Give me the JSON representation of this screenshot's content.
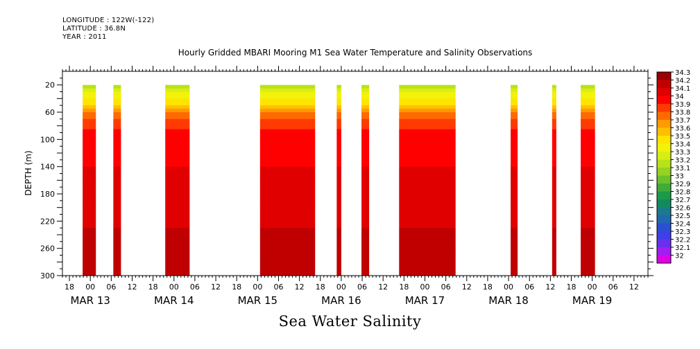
{
  "header": {
    "longitude": "LONGITUDE : 122W(-122)",
    "latitude": "LATITUDE : 36.8N",
    "year": "YEAR : 2011"
  },
  "chart_data": {
    "type": "heatmap",
    "title": "Hourly Gridded MBARI Mooring M1 Sea Water Temperature and Salinity Observations",
    "variable_label": "Sea Water Salinity",
    "ylabel": "DEPTH (m)",
    "ylim": [
      300,
      0
    ],
    "y_ticks": [
      20,
      60,
      100,
      140,
      180,
      220,
      260,
      300
    ],
    "x_range_hours": [
      -8,
      160
    ],
    "x_hour_labels": [
      {
        "h": -6,
        "label": "18"
      },
      {
        "h": 0,
        "label": "00"
      },
      {
        "h": 6,
        "label": "06"
      },
      {
        "h": 12,
        "label": "12"
      },
      {
        "h": 18,
        "label": "18"
      },
      {
        "h": 24,
        "label": "00"
      },
      {
        "h": 30,
        "label": "06"
      },
      {
        "h": 36,
        "label": "12"
      },
      {
        "h": 42,
        "label": "18"
      },
      {
        "h": 48,
        "label": "00"
      },
      {
        "h": 54,
        "label": "06"
      },
      {
        "h": 60,
        "label": "12"
      },
      {
        "h": 66,
        "label": "18"
      },
      {
        "h": 72,
        "label": "00"
      },
      {
        "h": 78,
        "label": "06"
      },
      {
        "h": 84,
        "label": "12"
      },
      {
        "h": 90,
        "label": "18"
      },
      {
        "h": 96,
        "label": "00"
      },
      {
        "h": 102,
        "label": "06"
      },
      {
        "h": 108,
        "label": "12"
      },
      {
        "h": 114,
        "label": "18"
      },
      {
        "h": 120,
        "label": "00"
      },
      {
        "h": 126,
        "label": "06"
      },
      {
        "h": 132,
        "label": "12"
      },
      {
        "h": 138,
        "label": "18"
      },
      {
        "h": 144,
        "label": "00"
      },
      {
        "h": 150,
        "label": "06"
      },
      {
        "h": 156,
        "label": "12"
      }
    ],
    "date_labels": [
      {
        "h": 0,
        "label": "MAR 13"
      },
      {
        "h": 24,
        "label": "MAR 14"
      },
      {
        "h": 48,
        "label": "MAR 15"
      },
      {
        "h": 72,
        "label": "MAR 16"
      },
      {
        "h": 96,
        "label": "MAR 17"
      },
      {
        "h": 120,
        "label": "MAR 18"
      },
      {
        "h": 144,
        "label": "MAR 19"
      }
    ],
    "data_segments_hours": [
      [
        -2.2,
        1.6
      ],
      [
        6.6,
        8.8
      ],
      [
        21.5,
        28.5
      ],
      [
        48.7,
        64.5
      ],
      [
        70.7,
        72.0
      ],
      [
        77.8,
        80.0
      ],
      [
        88.6,
        104.8
      ],
      [
        120.6,
        122.6
      ],
      [
        132.5,
        133.7
      ],
      [
        140.7,
        144.8
      ]
    ],
    "salinity_profile": [
      {
        "depth": 20,
        "value": 33.2
      },
      {
        "depth": 30,
        "value": 33.4
      },
      {
        "depth": 40,
        "value": 33.5
      },
      {
        "depth": 50,
        "value": 33.6
      },
      {
        "depth": 60,
        "value": 33.8
      },
      {
        "depth": 70,
        "value": 33.9
      },
      {
        "depth": 85,
        "value": 34.0
      },
      {
        "depth": 110,
        "value": 34.05
      },
      {
        "depth": 150,
        "value": 34.12
      },
      {
        "depth": 230,
        "value": 34.2
      },
      {
        "depth": 280,
        "value": 34.25
      },
      {
        "depth": 300,
        "value": 34.2
      }
    ],
    "colorbar": {
      "levels": [
        "34.3",
        "34.2",
        "34.1",
        "34",
        "33.9",
        "33.8",
        "33.7",
        "33.6",
        "33.5",
        "33.4",
        "33.3",
        "33.2",
        "33.1",
        "33",
        "32.9",
        "32.8",
        "32.7",
        "32.6",
        "32.5",
        "32.4",
        "32.3",
        "32.2",
        "32.1",
        "32"
      ],
      "colors": [
        "#9b0000",
        "#c00000",
        "#e00000",
        "#ff0000",
        "#ff3a00",
        "#ff6a00",
        "#ff9a00",
        "#ffbf00",
        "#ffe400",
        "#f2f20a",
        "#d7ee12",
        "#b8e21a",
        "#96d222",
        "#6cc02c",
        "#3fab38",
        "#1c9a48",
        "#128a5e",
        "#1c7a8c",
        "#2266b4",
        "#2a50d0",
        "#3f3ee8",
        "#6a2ef0",
        "#a01ef0",
        "#e000e8"
      ]
    }
  }
}
